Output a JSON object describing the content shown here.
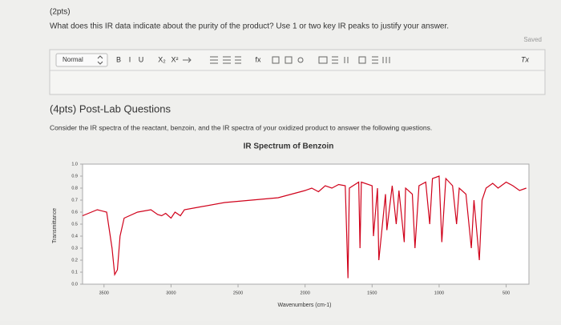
{
  "question": {
    "points": "(2pts)",
    "text": "What does this IR data indicate about the purity of the product? Use 1 or two key IR peaks to justify your answer."
  },
  "editor": {
    "status": "Saved",
    "format": "Normal",
    "toolbar": [
      "B",
      "I",
      "U",
      "X₂",
      "X²",
      "fx"
    ],
    "clear": "Tx"
  },
  "section": {
    "title": "(4pts) Post-Lab Questions",
    "text": "Consider the IR spectra of the reactant, benzoin, and the IR spectra of your oxidized product to answer the following questions."
  },
  "chart_data": {
    "type": "line",
    "title": "IR Spectrum of Benzoin",
    "x_label": "Wavenumbers (cm-1)",
    "y_label": "Transmittance",
    "xlim": [
      3660,
      330
    ],
    "ylim": [
      0,
      1
    ],
    "grid": false,
    "color": "#d0021b",
    "xticks": [
      3500,
      3000,
      2500,
      2000,
      1500,
      1000,
      500
    ],
    "yticks": [
      {
        "value": 0,
        "label": "0.0"
      },
      0.1,
      0.2,
      0.3,
      0.4,
      0.5,
      0.6,
      0.7,
      0.8,
      0.9,
      {
        "value": 1,
        "label": "1.0"
      }
    ],
    "x": [
      3660,
      3550,
      3480,
      3440,
      3420,
      3400,
      3380,
      3350,
      3250,
      3150,
      3100,
      3070,
      3040,
      3000,
      2970,
      2930,
      2900,
      2800,
      2600,
      2400,
      2200,
      2100,
      2000,
      1950,
      1900,
      1850,
      1800,
      1750,
      1700,
      1680,
      1670,
      1600,
      1590,
      1580,
      1500,
      1490,
      1460,
      1450,
      1400,
      1390,
      1350,
      1320,
      1300,
      1260,
      1250,
      1200,
      1180,
      1150,
      1100,
      1070,
      1050,
      1000,
      980,
      950,
      900,
      870,
      850,
      800,
      760,
      740,
      700,
      680,
      650,
      600,
      560,
      500,
      450,
      400,
      350
    ],
    "values": [
      0.57,
      0.62,
      0.6,
      0.3,
      0.08,
      0.12,
      0.4,
      0.55,
      0.6,
      0.62,
      0.58,
      0.57,
      0.59,
      0.55,
      0.6,
      0.57,
      0.62,
      0.64,
      0.68,
      0.7,
      0.72,
      0.75,
      0.78,
      0.8,
      0.77,
      0.82,
      0.8,
      0.83,
      0.82,
      0.05,
      0.8,
      0.85,
      0.3,
      0.85,
      0.82,
      0.4,
      0.8,
      0.2,
      0.75,
      0.45,
      0.82,
      0.5,
      0.78,
      0.35,
      0.8,
      0.75,
      0.3,
      0.82,
      0.85,
      0.5,
      0.88,
      0.9,
      0.35,
      0.88,
      0.82,
      0.5,
      0.8,
      0.75,
      0.3,
      0.7,
      0.2,
      0.7,
      0.8,
      0.84,
      0.8,
      0.85,
      0.82,
      0.78,
      0.8
    ]
  }
}
